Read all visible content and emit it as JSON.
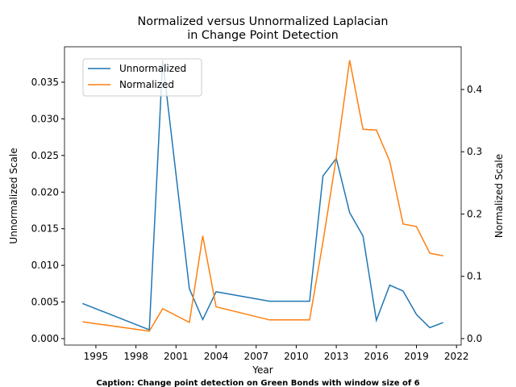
{
  "chart_data": {
    "type": "line",
    "title": "Normalized versus Unnormalized Laplacian\nin Change Point Detection",
    "x_label": "Year",
    "y_label": "Unnormalized Scale",
    "y2_label": "Normalized Scale",
    "caption": "Caption: Change point detection on Green Bonds with window size of 6",
    "x": [
      1994,
      1999,
      2000,
      2002,
      2003,
      2004,
      2008,
      2011,
      2012,
      2013,
      2014,
      2015,
      2016,
      2017,
      2018,
      2019,
      2020,
      2021
    ],
    "series": [
      {
        "name": "Unnormalized",
        "color": "#1f77b4",
        "values": [
          0.0048,
          0.0012,
          0.038,
          0.0068,
          0.0026,
          0.0064,
          0.0051,
          0.0051,
          0.0222,
          0.0246,
          0.0172,
          0.014,
          0.0025,
          0.0073,
          0.0065,
          0.0033,
          0.0015,
          0.0022
        ]
      },
      {
        "name": "Normalized",
        "color": "#ff7f0e",
        "axis": "y2",
        "values": [
          0.027,
          0.012,
          0.048,
          0.026,
          0.165,
          0.051,
          0.03,
          0.03,
          0.155,
          0.291,
          0.447,
          0.336,
          0.335,
          0.285,
          0.184,
          0.18,
          0.137,
          0.133
        ]
      }
    ],
    "xlim": [
      1992.65,
      2022.35
    ],
    "xticks": [
      1995,
      1998,
      2001,
      2004,
      2007,
      2010,
      2013,
      2016,
      2019,
      2022
    ],
    "ylim": [
      -0.00088,
      0.03984
    ],
    "yticks": [
      {
        "value": 0,
        "label": "0.000"
      },
      0.005,
      {
        "value": 0.01,
        "label": "0.010"
      },
      0.015,
      {
        "value": 0.02,
        "label": "0.020"
      },
      0.025,
      {
        "value": 0.03,
        "label": "0.030"
      },
      0.035
    ],
    "y2lim": [
      -0.0104,
      0.4686
    ],
    "y2ticks": [
      {
        "value": 0,
        "label": "0.0"
      },
      0.1,
      0.2,
      0.3,
      0.4
    ],
    "legend": "upper left"
  }
}
